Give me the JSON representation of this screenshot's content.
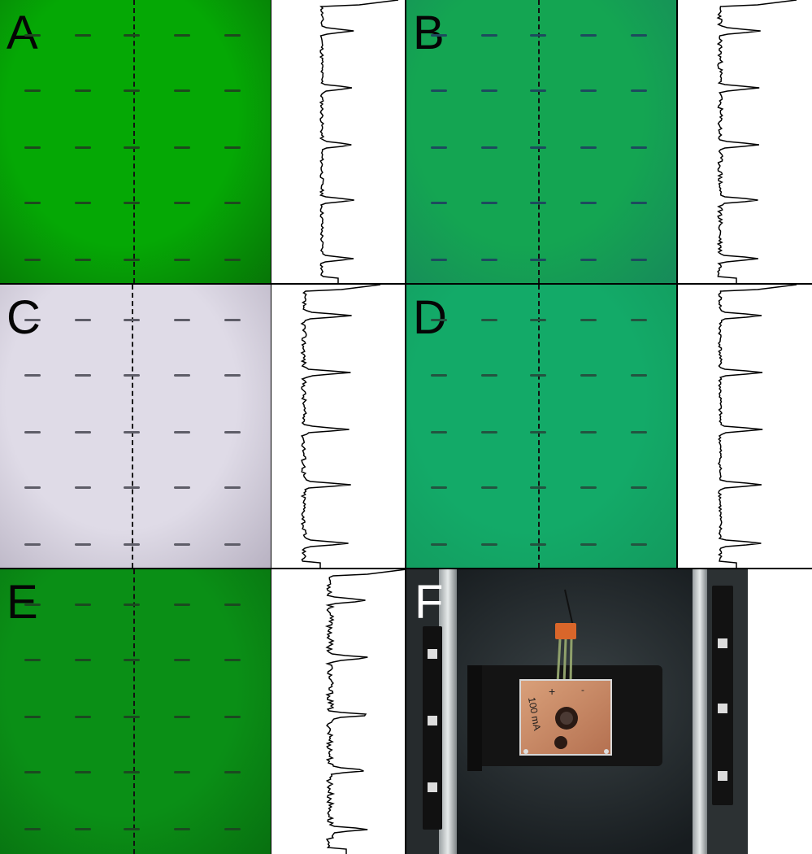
{
  "panels": [
    {
      "label": "A",
      "bg": "#05a805",
      "vignette": "#077507",
      "dash": "#1d4a1d",
      "label_color": "dark"
    },
    {
      "label": "B",
      "bg": "#14a552",
      "vignette": "#178a5a",
      "dash": "#1d4b5e",
      "label_color": "dark"
    },
    {
      "label": "C",
      "bg": "#dfdbe7",
      "vignette": "#b8b2c2",
      "dash": "#5e5d68",
      "label_color": "dark"
    },
    {
      "label": "D",
      "bg": "#13aa68",
      "vignette": "#139a5e",
      "dash": "#235440",
      "label_color": "dark"
    },
    {
      "label": "E",
      "bg": "#0a8f16",
      "vignette": "#087010",
      "dash": "#1b4a20",
      "label_color": "dark"
    },
    {
      "label": "F",
      "label_color": "light"
    }
  ],
  "photo": {
    "board_text": "100 mA",
    "plus_sign": "+",
    "minus_sign": "-"
  }
}
